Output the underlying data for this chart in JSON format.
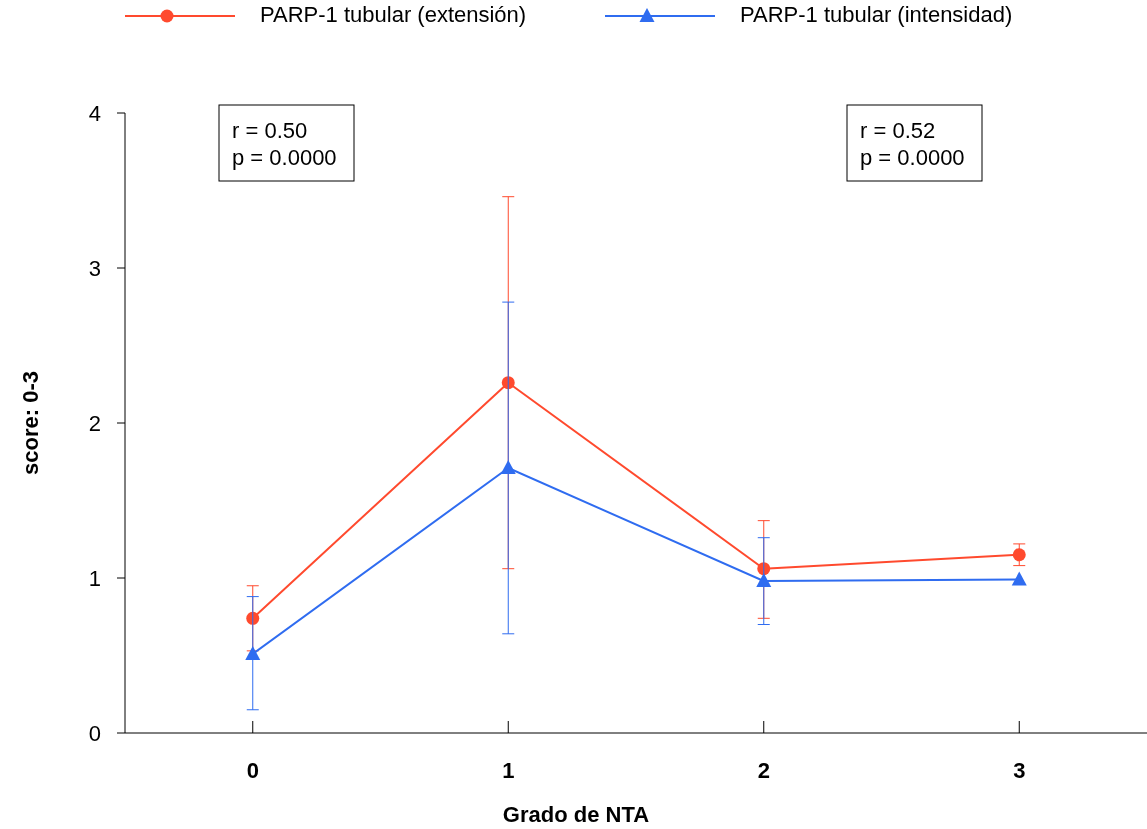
{
  "chart_data": {
    "type": "line",
    "xlabel": "Grado de NTA",
    "ylabel": "score: 0-3",
    "x": [
      0,
      1,
      2,
      3
    ],
    "xlim": [
      -0.5,
      3.5
    ],
    "xticks": [
      0,
      1,
      2,
      3
    ],
    "ylim": [
      0,
      4
    ],
    "yticks": [
      0,
      1,
      2,
      3,
      4
    ],
    "grid": false,
    "legend": "top",
    "annotations": [
      "r = 0.50\np = 0.0000",
      "r = 0.52\np = 0.0000"
    ],
    "series": [
      {
        "name": "PARP-1  tubular  (extensión)",
        "color": "#ff4a2e",
        "marker": "circle",
        "values": [
          0.74,
          2.26,
          1.06,
          1.15
        ],
        "errors": [
          [
            0.53,
            0.95
          ],
          [
            1.06,
            3.46
          ],
          [
            0.74,
            1.37
          ],
          [
            1.08,
            1.22
          ]
        ]
      },
      {
        "name": "PARP-1  tubular  (intensidad)",
        "color": "#2f6cf0",
        "marker": "triangle",
        "values": [
          0.51,
          1.71,
          0.98,
          0.99
        ],
        "errors": [
          [
            0.15,
            0.88
          ],
          [
            0.64,
            2.78
          ],
          [
            0.7,
            1.26
          ],
          null
        ]
      }
    ]
  }
}
